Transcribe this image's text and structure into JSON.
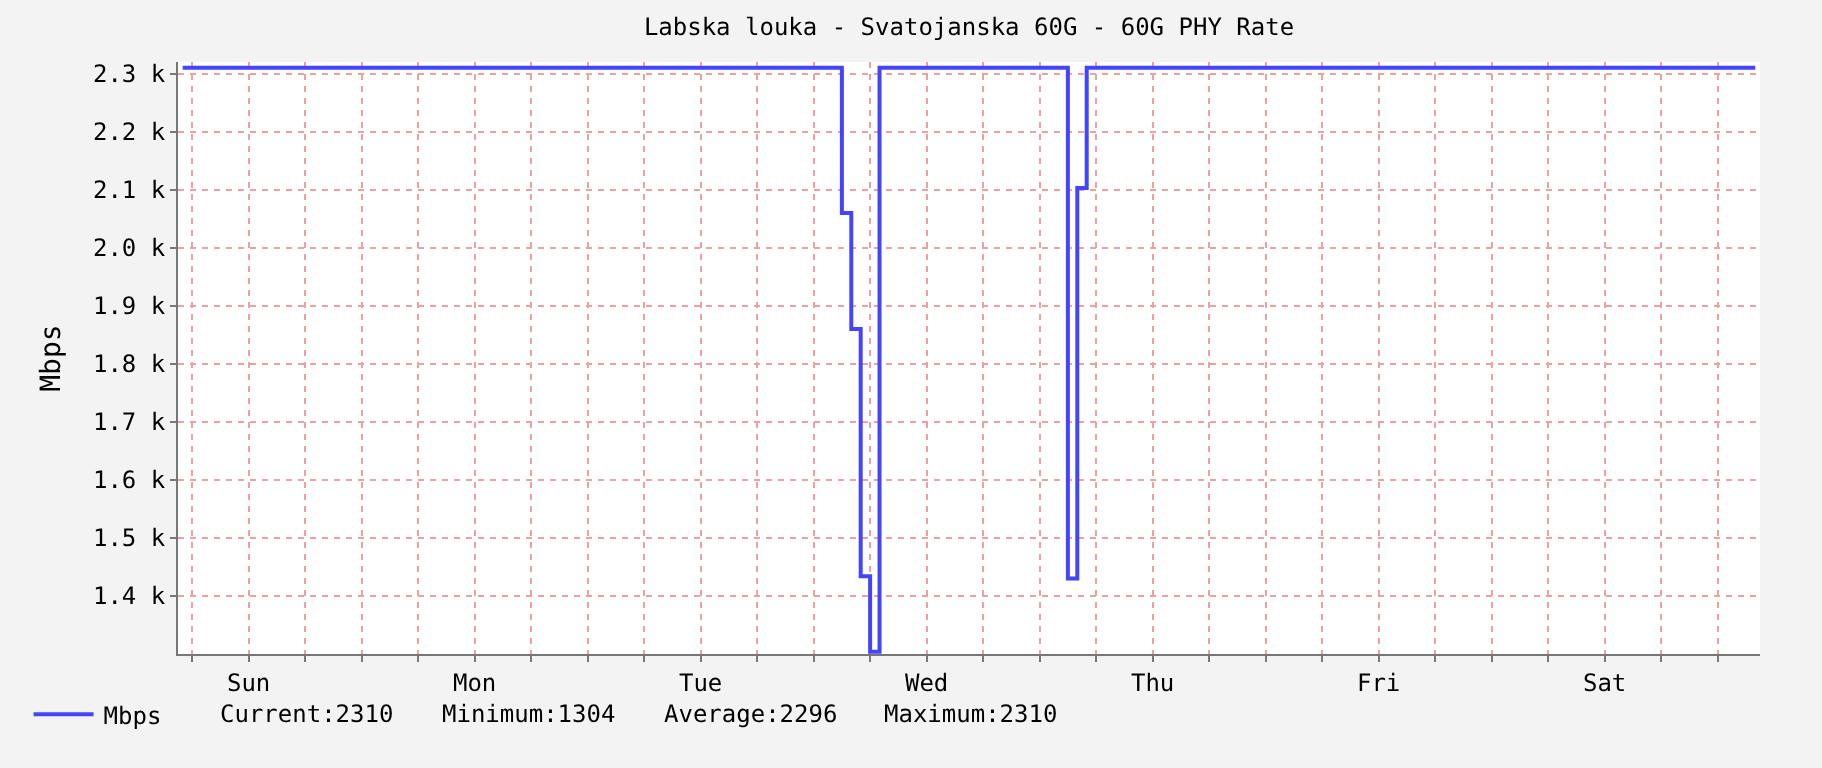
{
  "chart_data": {
    "type": "step",
    "title": "Labska louka - Svatojanska 60G - 60G PHY Rate",
    "ylabel": "Mbps",
    "categories": [
      null,
      null,
      null,
      null,
      null,
      null,
      null,
      "Sun",
      null,
      null,
      null,
      null,
      null,
      null,
      null,
      null,
      null,
      null,
      null,
      null,
      null,
      null,
      null,
      null,
      null,
      null,
      null,
      null,
      null,
      null,
      null,
      "Mon",
      null,
      null,
      null,
      null,
      null,
      null,
      null,
      null,
      null,
      null,
      null,
      null,
      null,
      null,
      null,
      null,
      null,
      null,
      null,
      null,
      null,
      null,
      null,
      "Tue",
      null,
      null,
      null,
      null,
      null,
      null,
      null,
      null,
      null,
      null,
      null,
      null,
      null,
      null,
      null,
      null,
      null,
      null,
      null,
      null,
      null,
      null,
      null,
      "Wed",
      null,
      null,
      null,
      null,
      null,
      null,
      null,
      null,
      null,
      null,
      null,
      null,
      null,
      null,
      null,
      null,
      null,
      null,
      null,
      null,
      null,
      null,
      null,
      "Thu",
      null,
      null,
      null,
      null,
      null,
      null,
      null,
      null,
      null,
      null,
      null,
      null,
      null,
      null,
      null,
      null,
      null,
      null,
      null,
      null,
      null,
      null,
      null,
      "Fri",
      null,
      null,
      null,
      null,
      null,
      null,
      null,
      null,
      null,
      null,
      null,
      null,
      null,
      null,
      null,
      null,
      null,
      null,
      null,
      null,
      null,
      null,
      null,
      "Sat",
      null,
      null,
      null,
      null,
      null,
      null,
      null,
      null,
      null,
      null,
      null,
      null,
      null,
      null,
      null,
      null
    ],
    "series": [
      {
        "name": "Mbps",
        "color": "#4444ff",
        "values": [
          2310,
          2310,
          2310,
          2310,
          2310,
          2310,
          2310,
          2310,
          2310,
          2310,
          2310,
          2310,
          2310,
          2310,
          2310,
          2310,
          2310,
          2310,
          2310,
          2310,
          2310,
          2310,
          2310,
          2310,
          2310,
          2310,
          2310,
          2310,
          2310,
          2310,
          2310,
          2310,
          2310,
          2310,
          2310,
          2310,
          2310,
          2310,
          2310,
          2310,
          2310,
          2310,
          2310,
          2310,
          2310,
          2310,
          2310,
          2310,
          2310,
          2310,
          2310,
          2310,
          2310,
          2310,
          2310,
          2310,
          2310,
          2310,
          2310,
          2310,
          2310,
          2310,
          2310,
          2310,
          2310,
          2310,
          2310,
          2310,
          2310,
          2310,
          2060,
          1860,
          1434,
          1304,
          2310,
          2310,
          2310,
          2310,
          2310,
          2310,
          2310,
          2310,
          2310,
          2310,
          2310,
          2310,
          2310,
          2310,
          2310,
          2310,
          2310,
          2310,
          2310,
          2310,
          1430,
          2103,
          2310,
          2310,
          2310,
          2310,
          2310,
          2310,
          2310,
          2310,
          2310,
          2310,
          2310,
          2310,
          2310,
          2310,
          2310,
          2310,
          2310,
          2310,
          2310,
          2310,
          2310,
          2310,
          2310,
          2310,
          2310,
          2310,
          2310,
          2310,
          2310,
          2310,
          2310,
          2310,
          2310,
          2310,
          2310,
          2310,
          2310,
          2310,
          2310,
          2310,
          2310,
          2310,
          2310,
          2310,
          2310,
          2310,
          2310,
          2310,
          2310,
          2310,
          2310,
          2310,
          2310,
          2310,
          2310,
          2310,
          2310,
          2310,
          2310,
          2310,
          2310,
          2310,
          2310,
          2310,
          2310,
          2310,
          2310,
          2310,
          2310,
          2310,
          2310,
          2310
        ]
      }
    ],
    "ylim": [
      1300,
      2320
    ],
    "yticks": [
      {
        "value": 1400,
        "label": "1.4 k"
      },
      {
        "value": 1500,
        "label": "1.5 k"
      },
      {
        "value": 1600,
        "label": "1.6 k"
      },
      {
        "value": 1700,
        "label": "1.7 k"
      },
      {
        "value": 1800,
        "label": "1.8 k"
      },
      {
        "value": 1900,
        "label": "1.9 k"
      },
      {
        "value": 2000,
        "label": "2.0 k"
      },
      {
        "value": 2100,
        "label": "2.1 k"
      },
      {
        "value": 2200,
        "label": "2.2 k"
      },
      {
        "value": 2300,
        "label": "2.3 k"
      }
    ],
    "grid": true,
    "legend": "bottom left",
    "marker": "none",
    "line_style": "solid",
    "annotations": [
      "Current:2310",
      "Minimum:1304",
      "Average:2296",
      "Maximum:2310"
    ]
  }
}
